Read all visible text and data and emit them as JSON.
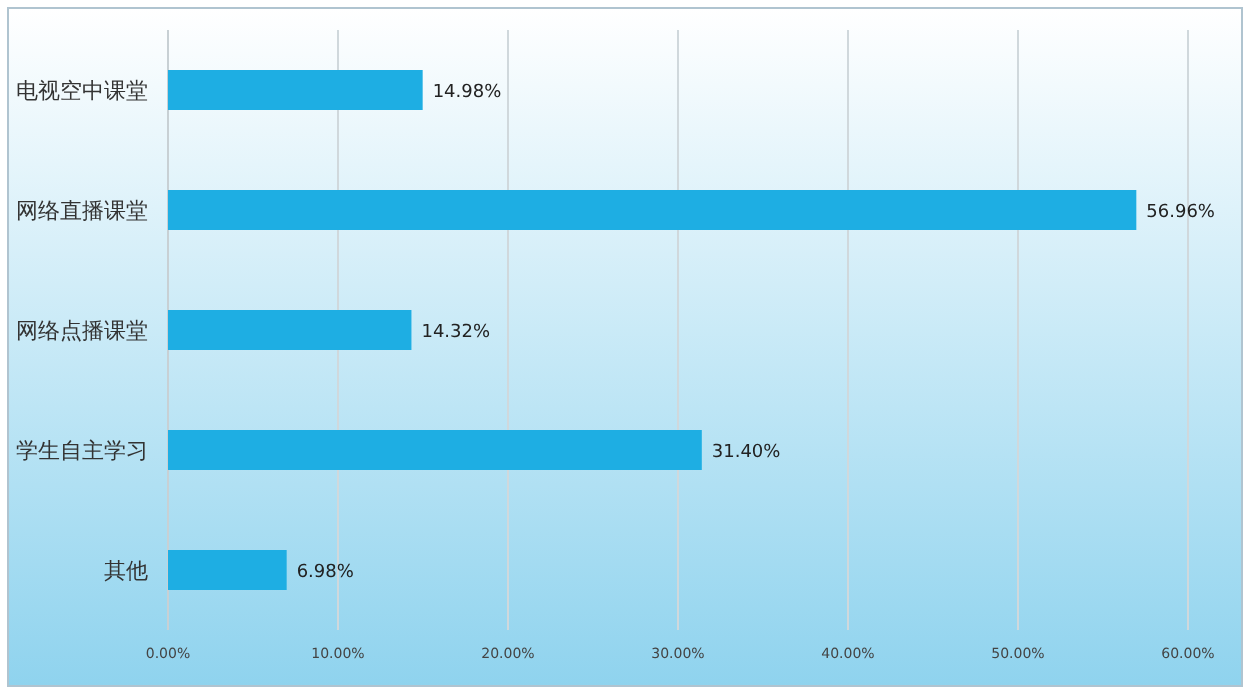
{
  "chart_data": {
    "type": "bar",
    "orientation": "horizontal",
    "categories": [
      "电视空中课堂",
      "网络直播课堂",
      "网络点播课堂",
      "学生自主学习",
      "其他"
    ],
    "values": [
      14.98,
      56.96,
      14.32,
      31.4,
      6.98
    ],
    "value_labels": [
      "14.98%",
      "56.96%",
      "14.32%",
      "31.40%",
      "6.98%"
    ],
    "color": "#1eaee3",
    "xlim": [
      0,
      60
    ],
    "xticks": [
      {
        "value": 0,
        "label": "0.00%"
      },
      {
        "value": 10,
        "label": "10.00%"
      },
      {
        "value": 20,
        "label": "20.00%"
      },
      {
        "value": 30,
        "label": "30.00%"
      },
      {
        "value": 40,
        "label": "40.00%"
      },
      {
        "value": 50,
        "label": "50.00%"
      },
      {
        "value": 60,
        "label": "60.00%"
      }
    ],
    "grid": "x"
  }
}
